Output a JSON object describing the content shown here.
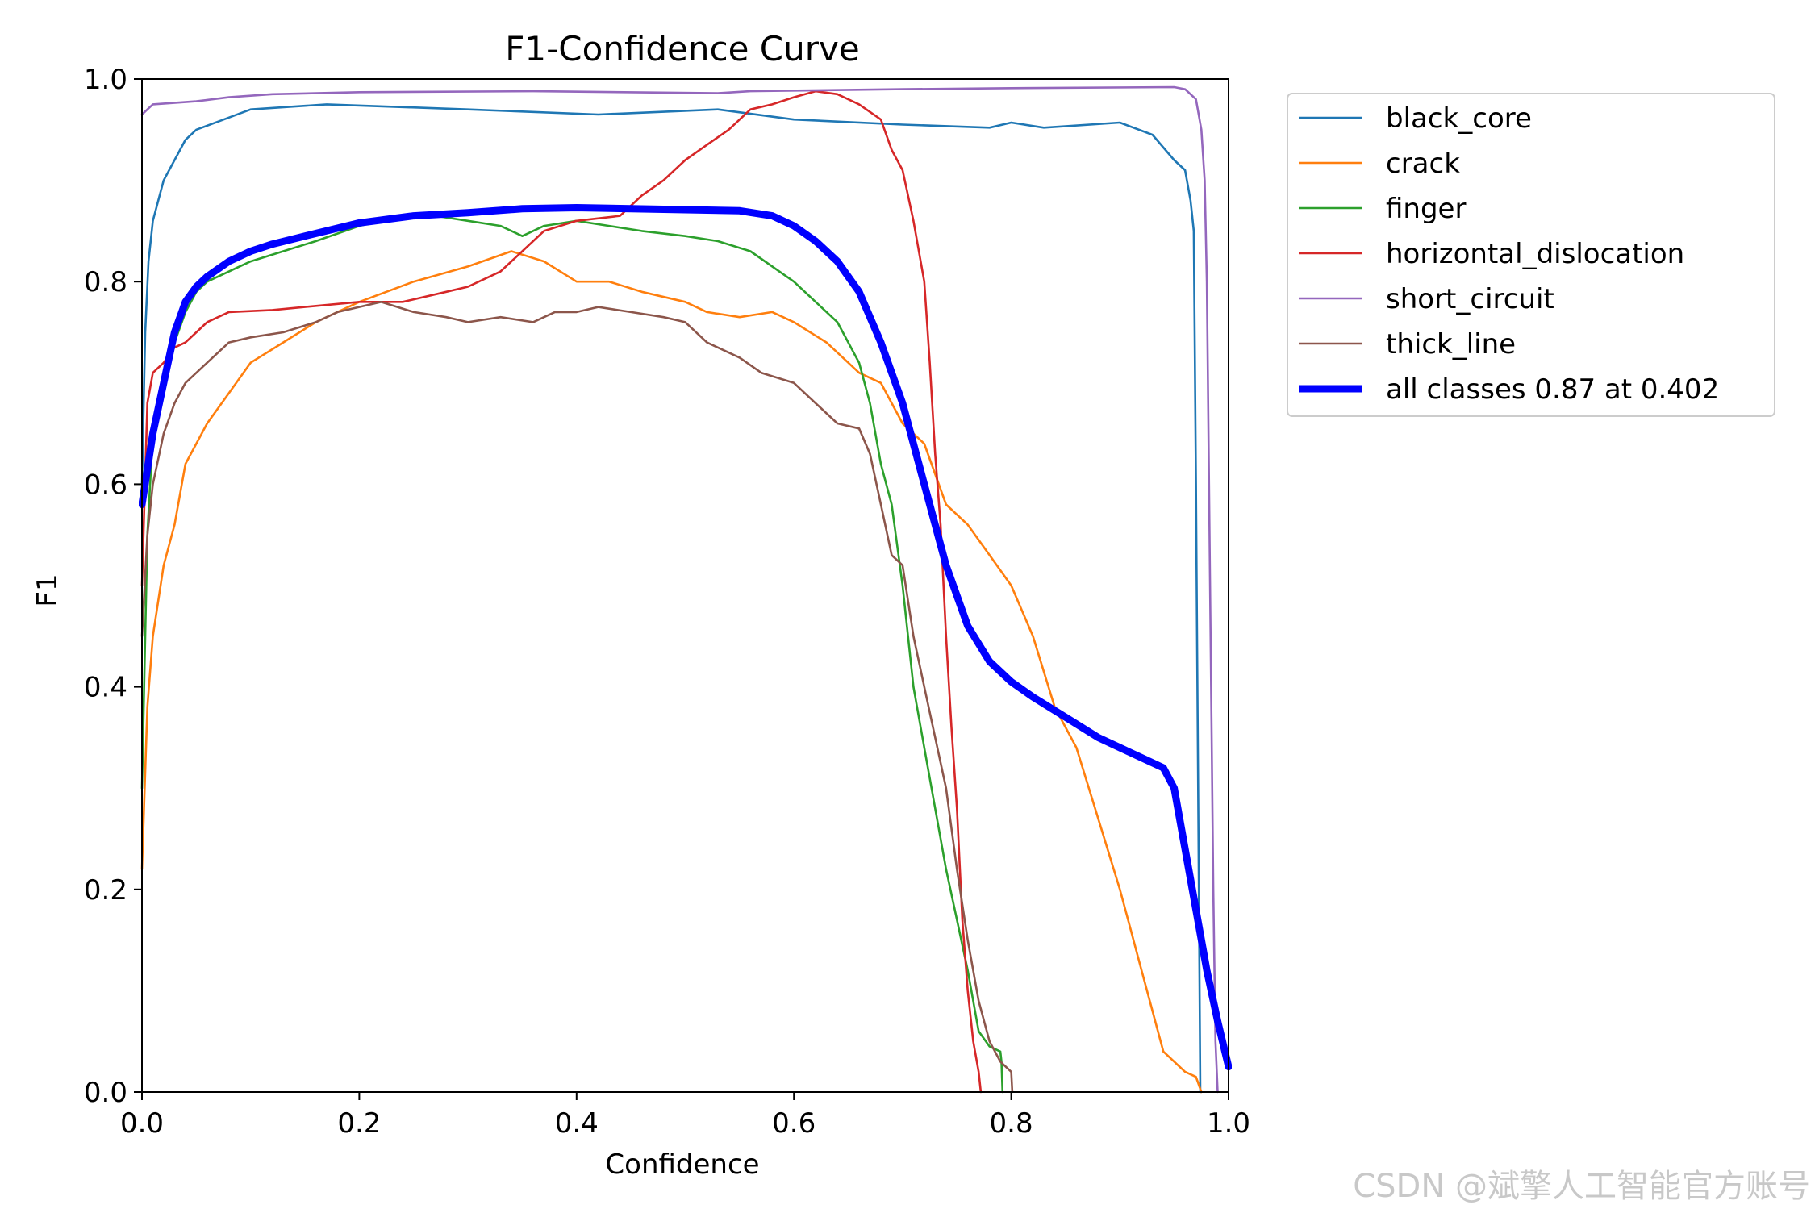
{
  "chart_data": {
    "type": "line",
    "title": "F1-Confidence Curve",
    "xlabel": "Confidence",
    "ylabel": "F1",
    "xlim": [
      0,
      1
    ],
    "ylim": [
      0,
      1
    ],
    "xticks": [
      "0.0",
      "0.2",
      "0.4",
      "0.6",
      "0.8",
      "1.0"
    ],
    "yticks": [
      "0.0",
      "0.2",
      "0.4",
      "0.6",
      "0.8",
      "1.0"
    ],
    "legend_position": "outside-top-right",
    "series": [
      {
        "name": "black_core",
        "color": "#1f77b4",
        "bold": false,
        "points": [
          [
            0,
            0.6
          ],
          [
            0.003,
            0.75
          ],
          [
            0.006,
            0.82
          ],
          [
            0.01,
            0.86
          ],
          [
            0.015,
            0.88
          ],
          [
            0.02,
            0.9
          ],
          [
            0.03,
            0.92
          ],
          [
            0.04,
            0.94
          ],
          [
            0.05,
            0.95
          ],
          [
            0.07,
            0.958
          ],
          [
            0.1,
            0.97
          ],
          [
            0.17,
            0.975
          ],
          [
            0.3,
            0.97
          ],
          [
            0.42,
            0.965
          ],
          [
            0.53,
            0.97
          ],
          [
            0.6,
            0.96
          ],
          [
            0.7,
            0.955
          ],
          [
            0.78,
            0.952
          ],
          [
            0.8,
            0.957
          ],
          [
            0.83,
            0.952
          ],
          [
            0.9,
            0.957
          ],
          [
            0.93,
            0.945
          ],
          [
            0.95,
            0.92
          ],
          [
            0.96,
            0.91
          ],
          [
            0.965,
            0.88
          ],
          [
            0.968,
            0.85
          ],
          [
            0.97,
            0.6
          ],
          [
            0.972,
            0.3
          ],
          [
            0.974,
            0.0
          ]
        ]
      },
      {
        "name": "crack",
        "color": "#ff7f0e",
        "bold": false,
        "points": [
          [
            0,
            0.22
          ],
          [
            0.005,
            0.38
          ],
          [
            0.01,
            0.45
          ],
          [
            0.02,
            0.52
          ],
          [
            0.03,
            0.56
          ],
          [
            0.04,
            0.62
          ],
          [
            0.06,
            0.66
          ],
          [
            0.08,
            0.69
          ],
          [
            0.1,
            0.72
          ],
          [
            0.13,
            0.74
          ],
          [
            0.16,
            0.76
          ],
          [
            0.2,
            0.78
          ],
          [
            0.25,
            0.8
          ],
          [
            0.3,
            0.815
          ],
          [
            0.34,
            0.83
          ],
          [
            0.37,
            0.82
          ],
          [
            0.4,
            0.8
          ],
          [
            0.43,
            0.8
          ],
          [
            0.46,
            0.79
          ],
          [
            0.5,
            0.78
          ],
          [
            0.52,
            0.77
          ],
          [
            0.55,
            0.765
          ],
          [
            0.58,
            0.77
          ],
          [
            0.6,
            0.76
          ],
          [
            0.63,
            0.74
          ],
          [
            0.66,
            0.71
          ],
          [
            0.68,
            0.7
          ],
          [
            0.7,
            0.66
          ],
          [
            0.72,
            0.64
          ],
          [
            0.74,
            0.58
          ],
          [
            0.76,
            0.56
          ],
          [
            0.78,
            0.53
          ],
          [
            0.8,
            0.5
          ],
          [
            0.82,
            0.45
          ],
          [
            0.84,
            0.38
          ],
          [
            0.86,
            0.34
          ],
          [
            0.88,
            0.27
          ],
          [
            0.9,
            0.2
          ],
          [
            0.91,
            0.16
          ],
          [
            0.92,
            0.12
          ],
          [
            0.93,
            0.08
          ],
          [
            0.94,
            0.04
          ],
          [
            0.95,
            0.03
          ],
          [
            0.96,
            0.02
          ],
          [
            0.97,
            0.015
          ],
          [
            0.975,
            0.0
          ]
        ]
      },
      {
        "name": "finger",
        "color": "#2ca02c",
        "bold": false,
        "points": [
          [
            0,
            0.3
          ],
          [
            0.005,
            0.55
          ],
          [
            0.01,
            0.65
          ],
          [
            0.02,
            0.71
          ],
          [
            0.03,
            0.74
          ],
          [
            0.04,
            0.77
          ],
          [
            0.05,
            0.79
          ],
          [
            0.06,
            0.8
          ],
          [
            0.08,
            0.81
          ],
          [
            0.1,
            0.82
          ],
          [
            0.13,
            0.83
          ],
          [
            0.16,
            0.84
          ],
          [
            0.2,
            0.855
          ],
          [
            0.24,
            0.865
          ],
          [
            0.27,
            0.865
          ],
          [
            0.3,
            0.86
          ],
          [
            0.33,
            0.855
          ],
          [
            0.35,
            0.845
          ],
          [
            0.37,
            0.855
          ],
          [
            0.4,
            0.86
          ],
          [
            0.43,
            0.855
          ],
          [
            0.46,
            0.85
          ],
          [
            0.5,
            0.845
          ],
          [
            0.53,
            0.84
          ],
          [
            0.56,
            0.83
          ],
          [
            0.6,
            0.8
          ],
          [
            0.62,
            0.78
          ],
          [
            0.64,
            0.76
          ],
          [
            0.66,
            0.72
          ],
          [
            0.67,
            0.68
          ],
          [
            0.68,
            0.62
          ],
          [
            0.69,
            0.58
          ],
          [
            0.7,
            0.5
          ],
          [
            0.71,
            0.4
          ],
          [
            0.72,
            0.34
          ],
          [
            0.73,
            0.28
          ],
          [
            0.74,
            0.22
          ],
          [
            0.75,
            0.17
          ],
          [
            0.76,
            0.12
          ],
          [
            0.77,
            0.06
          ],
          [
            0.78,
            0.045
          ],
          [
            0.79,
            0.04
          ],
          [
            0.791,
            0.03
          ],
          [
            0.792,
            0.0
          ]
        ]
      },
      {
        "name": "horizontal_dislocation",
        "color": "#d62728",
        "bold": false,
        "points": [
          [
            0,
            0.5
          ],
          [
            0.005,
            0.68
          ],
          [
            0.01,
            0.71
          ],
          [
            0.02,
            0.72
          ],
          [
            0.03,
            0.735
          ],
          [
            0.04,
            0.74
          ],
          [
            0.05,
            0.75
          ],
          [
            0.06,
            0.76
          ],
          [
            0.08,
            0.77
          ],
          [
            0.12,
            0.772
          ],
          [
            0.2,
            0.78
          ],
          [
            0.24,
            0.78
          ],
          [
            0.28,
            0.79
          ],
          [
            0.3,
            0.795
          ],
          [
            0.33,
            0.81
          ],
          [
            0.35,
            0.83
          ],
          [
            0.37,
            0.85
          ],
          [
            0.4,
            0.86
          ],
          [
            0.44,
            0.865
          ],
          [
            0.46,
            0.885
          ],
          [
            0.48,
            0.9
          ],
          [
            0.5,
            0.92
          ],
          [
            0.52,
            0.935
          ],
          [
            0.54,
            0.95
          ],
          [
            0.56,
            0.97
          ],
          [
            0.58,
            0.975
          ],
          [
            0.6,
            0.982
          ],
          [
            0.62,
            0.988
          ],
          [
            0.64,
            0.985
          ],
          [
            0.66,
            0.975
          ],
          [
            0.68,
            0.96
          ],
          [
            0.69,
            0.93
          ],
          [
            0.7,
            0.91
          ],
          [
            0.71,
            0.86
          ],
          [
            0.72,
            0.8
          ],
          [
            0.725,
            0.72
          ],
          [
            0.73,
            0.63
          ],
          [
            0.735,
            0.56
          ],
          [
            0.74,
            0.45
          ],
          [
            0.745,
            0.36
          ],
          [
            0.75,
            0.28
          ],
          [
            0.755,
            0.17
          ],
          [
            0.76,
            0.1
          ],
          [
            0.765,
            0.05
          ],
          [
            0.77,
            0.02
          ],
          [
            0.772,
            0.0
          ]
        ]
      },
      {
        "name": "short_circuit",
        "color": "#9467bd",
        "bold": false,
        "points": [
          [
            0,
            0.965
          ],
          [
            0.005,
            0.97
          ],
          [
            0.01,
            0.975
          ],
          [
            0.05,
            0.978
          ],
          [
            0.08,
            0.982
          ],
          [
            0.12,
            0.985
          ],
          [
            0.2,
            0.987
          ],
          [
            0.36,
            0.988
          ],
          [
            0.53,
            0.986
          ],
          [
            0.56,
            0.988
          ],
          [
            0.7,
            0.99
          ],
          [
            0.8,
            0.991
          ],
          [
            0.95,
            0.992
          ],
          [
            0.96,
            0.99
          ],
          [
            0.97,
            0.98
          ],
          [
            0.975,
            0.95
          ],
          [
            0.978,
            0.9
          ],
          [
            0.98,
            0.8
          ],
          [
            0.982,
            0.6
          ],
          [
            0.984,
            0.4
          ],
          [
            0.986,
            0.2
          ],
          [
            0.988,
            0.05
          ],
          [
            0.99,
            0.0
          ]
        ]
      },
      {
        "name": "thick_line",
        "color": "#8c564b",
        "bold": false,
        "points": [
          [
            0,
            0.45
          ],
          [
            0.005,
            0.55
          ],
          [
            0.01,
            0.6
          ],
          [
            0.02,
            0.65
          ],
          [
            0.03,
            0.68
          ],
          [
            0.04,
            0.7
          ],
          [
            0.05,
            0.71
          ],
          [
            0.06,
            0.72
          ],
          [
            0.08,
            0.74
          ],
          [
            0.1,
            0.745
          ],
          [
            0.13,
            0.75
          ],
          [
            0.16,
            0.76
          ],
          [
            0.18,
            0.77
          ],
          [
            0.2,
            0.775
          ],
          [
            0.22,
            0.78
          ],
          [
            0.25,
            0.77
          ],
          [
            0.28,
            0.765
          ],
          [
            0.3,
            0.76
          ],
          [
            0.33,
            0.765
          ],
          [
            0.36,
            0.76
          ],
          [
            0.38,
            0.77
          ],
          [
            0.4,
            0.77
          ],
          [
            0.42,
            0.775
          ],
          [
            0.45,
            0.77
          ],
          [
            0.48,
            0.765
          ],
          [
            0.5,
            0.76
          ],
          [
            0.52,
            0.74
          ],
          [
            0.55,
            0.725
          ],
          [
            0.57,
            0.71
          ],
          [
            0.6,
            0.7
          ],
          [
            0.62,
            0.68
          ],
          [
            0.64,
            0.66
          ],
          [
            0.66,
            0.655
          ],
          [
            0.67,
            0.63
          ],
          [
            0.68,
            0.58
          ],
          [
            0.69,
            0.53
          ],
          [
            0.7,
            0.52
          ],
          [
            0.71,
            0.45
          ],
          [
            0.72,
            0.4
          ],
          [
            0.73,
            0.35
          ],
          [
            0.74,
            0.3
          ],
          [
            0.75,
            0.22
          ],
          [
            0.76,
            0.15
          ],
          [
            0.77,
            0.09
          ],
          [
            0.78,
            0.05
          ],
          [
            0.79,
            0.03
          ],
          [
            0.8,
            0.02
          ],
          [
            0.801,
            0.0
          ]
        ]
      },
      {
        "name": "all classes 0.87 at 0.402",
        "color": "#0000ff",
        "bold": true,
        "points": [
          [
            0,
            0.58
          ],
          [
            0.01,
            0.65
          ],
          [
            0.02,
            0.7
          ],
          [
            0.03,
            0.75
          ],
          [
            0.04,
            0.78
          ],
          [
            0.05,
            0.795
          ],
          [
            0.06,
            0.805
          ],
          [
            0.08,
            0.82
          ],
          [
            0.1,
            0.83
          ],
          [
            0.12,
            0.837
          ],
          [
            0.15,
            0.845
          ],
          [
            0.2,
            0.858
          ],
          [
            0.25,
            0.865
          ],
          [
            0.3,
            0.868
          ],
          [
            0.35,
            0.872
          ],
          [
            0.4,
            0.873
          ],
          [
            0.45,
            0.872
          ],
          [
            0.5,
            0.871
          ],
          [
            0.55,
            0.87
          ],
          [
            0.58,
            0.865
          ],
          [
            0.6,
            0.855
          ],
          [
            0.62,
            0.84
          ],
          [
            0.64,
            0.82
          ],
          [
            0.66,
            0.79
          ],
          [
            0.68,
            0.74
          ],
          [
            0.7,
            0.68
          ],
          [
            0.72,
            0.6
          ],
          [
            0.74,
            0.52
          ],
          [
            0.76,
            0.46
          ],
          [
            0.78,
            0.425
          ],
          [
            0.8,
            0.405
          ],
          [
            0.82,
            0.39
          ],
          [
            0.85,
            0.37
          ],
          [
            0.88,
            0.35
          ],
          [
            0.9,
            0.34
          ],
          [
            0.92,
            0.33
          ],
          [
            0.94,
            0.32
          ],
          [
            0.95,
            0.3
          ],
          [
            0.96,
            0.24
          ],
          [
            0.97,
            0.18
          ],
          [
            0.98,
            0.12
          ],
          [
            0.99,
            0.07
          ],
          [
            1.0,
            0.025
          ]
        ]
      }
    ]
  },
  "watermark": "CSDN @斌擎人工智能官方账号"
}
